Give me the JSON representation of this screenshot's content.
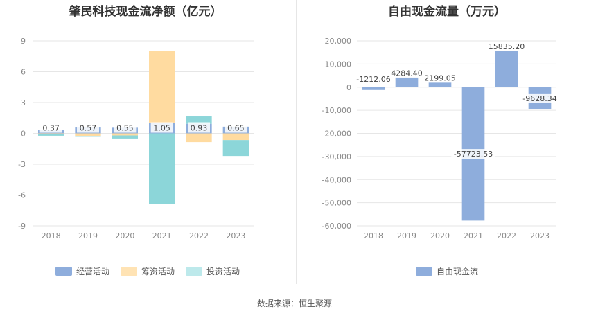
{
  "source_label": "数据来源：恒生聚源",
  "chart_data": [
    {
      "type": "bar",
      "stacked": true,
      "title": "肇民科技现金流净额（亿元）",
      "categories": [
        "2018",
        "2019",
        "2020",
        "2021",
        "2022",
        "2023"
      ],
      "ylim": [
        -9,
        9
      ],
      "yticks": [
        -9,
        -6,
        -3,
        0,
        3,
        6,
        9
      ],
      "grid": true,
      "legend_position": "bottom",
      "series": [
        {
          "name": "经营活动",
          "color": "#8eaddc",
          "values": [
            0.37,
            0.57,
            0.55,
            1.05,
            0.93,
            0.65
          ],
          "labels": [
            "0.37",
            "0.57",
            "0.55",
            "1.05",
            "0.93",
            "0.65"
          ]
        },
        {
          "name": "筹资活动",
          "color": "#ffdba0",
          "values": [
            -0.05,
            -0.28,
            -0.2,
            7.0,
            -0.85,
            -0.65
          ]
        },
        {
          "name": "投资活动",
          "color": "#8cd6d9",
          "values": [
            -0.18,
            -0.05,
            -0.3,
            -6.85,
            0.72,
            -1.55
          ]
        }
      ]
    },
    {
      "type": "bar",
      "title": "自由现金流量（万元）",
      "categories": [
        "2018",
        "2019",
        "2020",
        "2021",
        "2022",
        "2023"
      ],
      "ylim": [
        -60000,
        20000
      ],
      "yticks": [
        -60000,
        -50000,
        -40000,
        -30000,
        -20000,
        -10000,
        0,
        10000,
        20000
      ],
      "ytick_labels": [
        "-60,000",
        "-50,000",
        "-40,000",
        "-30,000",
        "-20,000",
        "-10,000",
        "0",
        "10,000",
        "20,000"
      ],
      "grid": true,
      "legend_position": "bottom",
      "series": [
        {
          "name": "自由现金流",
          "color": "#8eaddc",
          "values": [
            -1212.06,
            4284.4,
            2199.05,
            -57723.53,
            15835.2,
            -9628.34
          ],
          "labels": [
            "-1212.06",
            "4284.40",
            "2199.05",
            "-57723.53",
            "15835.20",
            "-9628.34"
          ]
        }
      ]
    }
  ]
}
